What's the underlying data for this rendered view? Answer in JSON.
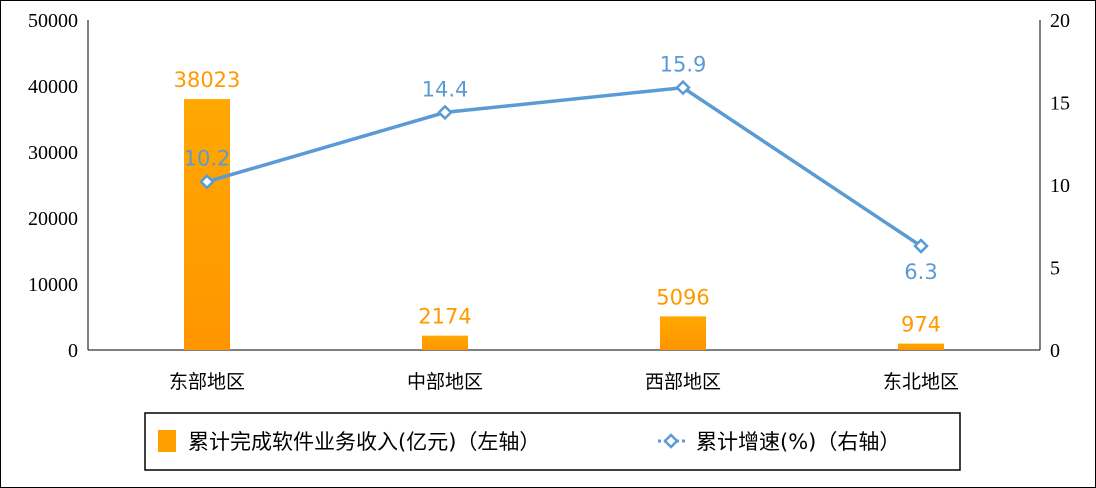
{
  "chart_data": {
    "type": "bar+line",
    "categories": [
      "东部地区",
      "中部地区",
      "西部地区",
      "东北地区"
    ],
    "series": [
      {
        "name": "累计完成软件业务收入(亿元)（左轴）",
        "type": "bar",
        "axis": "left",
        "values": [
          38023,
          2174,
          5096,
          974
        ],
        "color": "#FFA000"
      },
      {
        "name": "累计增速(%)（右轴）",
        "type": "line",
        "axis": "right",
        "values": [
          10.2,
          14.4,
          15.9,
          6.3
        ],
        "color": "#5B9BD5"
      }
    ],
    "y_left": {
      "range": [
        0,
        50000
      ],
      "ticks": [
        "0",
        "10000",
        "20000",
        "30000",
        "40000",
        "50000"
      ]
    },
    "y_right": {
      "range": [
        0,
        20
      ],
      "ticks": [
        "0",
        "5",
        "10",
        "15",
        "20"
      ]
    },
    "grid": false,
    "legend": "bottom",
    "bar_labels": [
      "38023",
      "2174",
      "5096",
      "974"
    ],
    "line_labels": [
      "10.2",
      "14.4",
      "15.9",
      "6.3"
    ]
  }
}
